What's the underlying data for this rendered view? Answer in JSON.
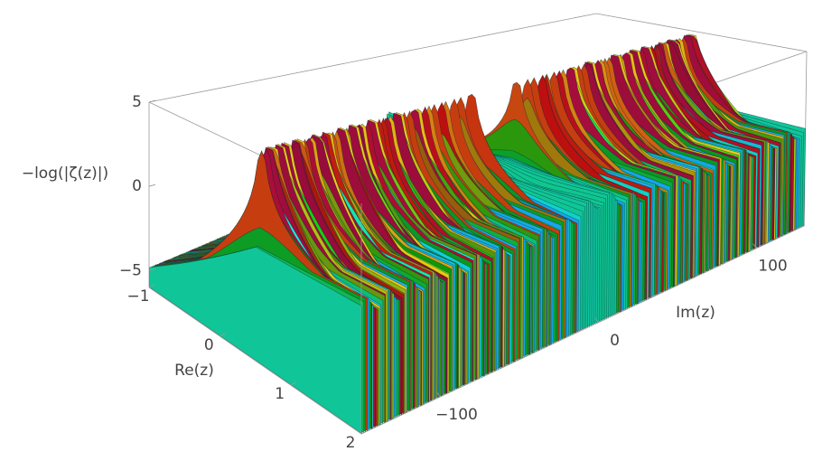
{
  "chart_data": {
    "type": "surface3d",
    "xlabel": "Re(z)",
    "ylabel": "Im(z)",
    "zlabel": "−log(|ζ(z)|)",
    "xlim": [
      -1,
      2
    ],
    "xticks": [
      {
        "value": -1,
        "label": "−1"
      },
      0,
      1,
      2
    ],
    "ylim": [
      -150,
      130
    ],
    "yticks": [
      {
        "value": -100,
        "label": "−100"
      },
      0,
      100
    ],
    "zlim": [
      -6,
      5
    ],
    "zticks": [
      {
        "value": -5,
        "label": "−5"
      },
      0,
      5
    ],
    "zeros_im": [
      -146.0,
      -143.1,
      -141.1,
      -139.7,
      -138.1,
      -134.8,
      -133.5,
      -131.1,
      -129.6,
      -124.3,
      -122.9,
      -121.4,
      -118.8,
      -116.2,
      -114.3,
      -111.9,
      -111.0,
      -107.2,
      -105.4,
      -103.7,
      -101.3,
      -98.8,
      -95.9,
      -94.7,
      -92.5,
      -88.8,
      -87.4,
      -84.7,
      -82.9,
      -79.3,
      -77.1,
      -75.7,
      -72.1,
      -69.5,
      -67.1,
      -65.1,
      -60.8,
      -59.3,
      -56.4,
      -53.0,
      -49.8,
      -48.0,
      -43.3,
      -40.9,
      -37.6,
      -32.9,
      -30.4,
      -25.0,
      -21.0,
      -14.1,
      14.1,
      21.0,
      25.0,
      30.4,
      32.9,
      37.6,
      40.9,
      43.3,
      48.0,
      49.8,
      53.0,
      56.4,
      59.3,
      60.8,
      65.1,
      67.1,
      69.5,
      72.1,
      75.7,
      77.1,
      79.3,
      82.9,
      84.7,
      87.4,
      88.8,
      92.5,
      94.7,
      95.9,
      98.8,
      101.3,
      103.7,
      105.4,
      107.2,
      111.0,
      111.9,
      114.3,
      116.2,
      118.8,
      121.4,
      122.9,
      124.3
    ]
  }
}
